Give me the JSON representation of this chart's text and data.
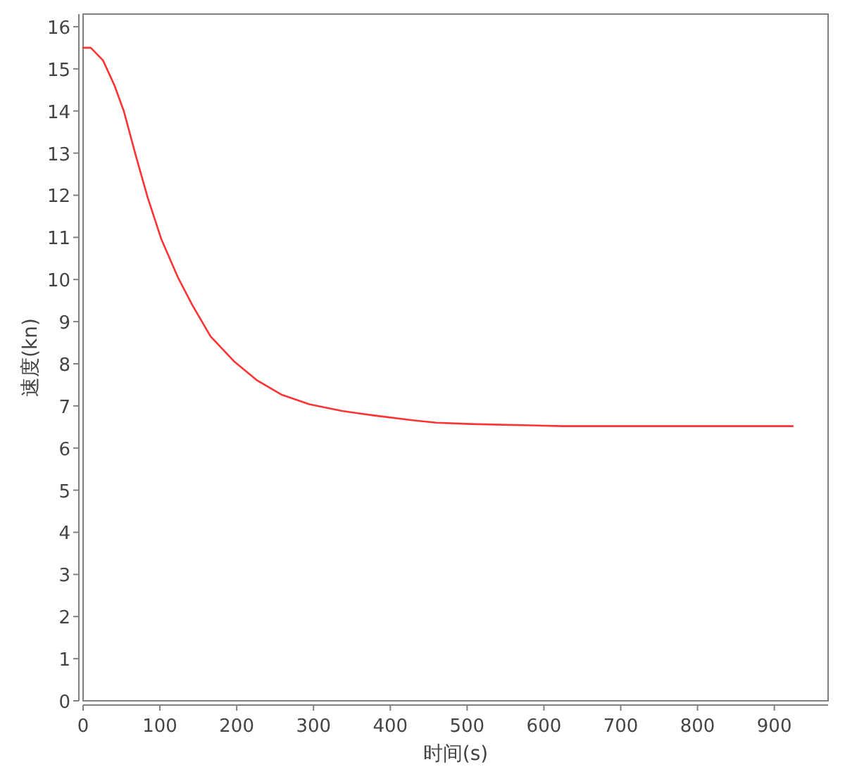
{
  "chart_data": {
    "type": "line",
    "xlabel": "时间(s)",
    "ylabel": "速度(kn)",
    "x": [
      0,
      10,
      26,
      41,
      53,
      68.5,
      84,
      102,
      123.5,
      142,
      166,
      197,
      227,
      258,
      294.5,
      337,
      380,
      429,
      460,
      505.5,
      624.6,
      924
    ],
    "series": [
      {
        "color": "#ff3333",
        "values": [
          15.5,
          15.5,
          15.2,
          14.6,
          14,
          12.95,
          11.95,
          10.95,
          10.05,
          9.4,
          8.65,
          8.05,
          7.6,
          7.27,
          7.04,
          6.88,
          6.77,
          6.66,
          6.6,
          6.57,
          6.52,
          6.52
        ]
      }
    ],
    "xlim": [
      0,
      970
    ],
    "ylim": [
      0,
      16.3
    ],
    "xticks": [
      0,
      100,
      200,
      300,
      400,
      500,
      600,
      700,
      800,
      900
    ],
    "yticks": [
      0,
      1,
      2,
      3,
      4,
      5,
      6,
      7,
      8,
      9,
      10,
      11,
      12,
      13,
      14,
      15,
      16
    ]
  }
}
